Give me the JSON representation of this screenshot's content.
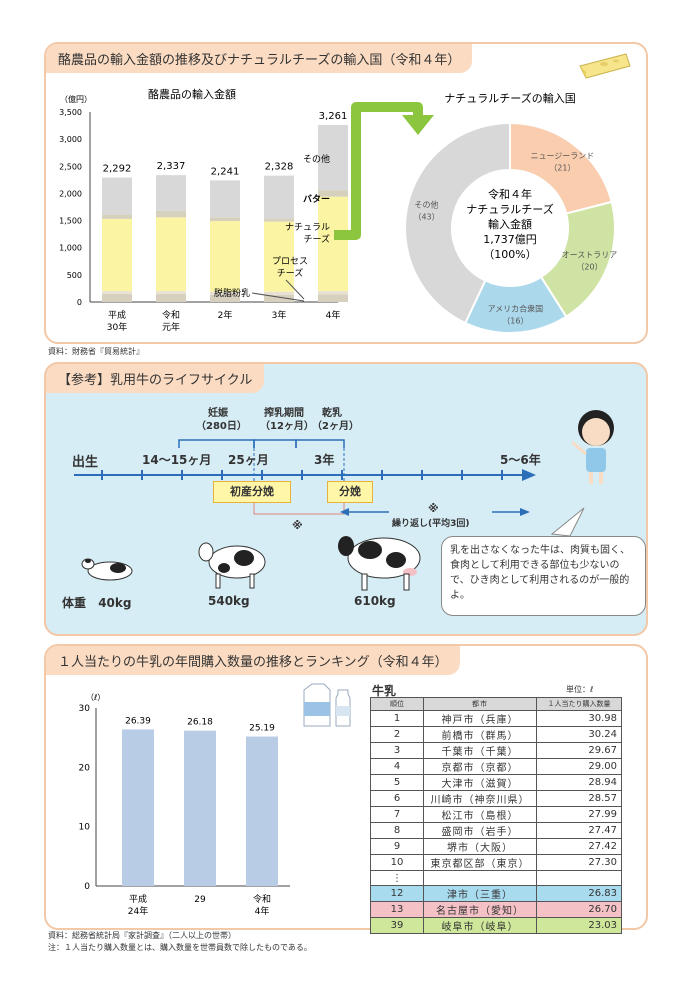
{
  "panel1": {
    "title": "酪農品の輸入金額の推移及びナチュラルチーズの輸入国（令和４年）",
    "source": "資料：財務省『貿易統計』"
  },
  "chart_data": [
    {
      "type": "bar",
      "title": "酪農品の輸入金額",
      "ylabel": "（億円）",
      "ylim": [
        0,
        3500
      ],
      "yticks": [
        "0",
        "500",
        "1,000",
        "1,500",
        "2,000",
        "2,500",
        "3,000",
        "3,500"
      ],
      "categories": [
        "平成30年",
        "令和元年",
        "2年",
        "3年",
        "4年"
      ],
      "totals": [
        "2,292",
        "2,337",
        "2,241",
        "2,328",
        "3,261"
      ],
      "series": [
        {
          "name": "脱脂粉乳",
          "values": [
            150,
            150,
            130,
            130,
            140
          ]
        },
        {
          "name": "プロセスチーズ",
          "values": [
            50,
            50,
            60,
            60,
            60
          ]
        },
        {
          "name": "ナチュラルチーズ",
          "values": [
            1330,
            1360,
            1300,
            1290,
            1740
          ]
        },
        {
          "name": "バター",
          "values": [
            80,
            120,
            70,
            60,
            121
          ]
        },
        {
          "name": "その他",
          "values": [
            682,
            657,
            681,
            788,
            1200
          ]
        }
      ],
      "colors": [
        "#d8d0bf",
        "#e7e1d3",
        "#fbf5a3",
        "#d6d1bd",
        "#d8d8d8"
      ]
    },
    {
      "type": "pie",
      "title": "ナチュラルチーズの輸入国",
      "center_text": [
        "令和４年",
        "ナチュラルチーズ",
        "輸入金額",
        "1,737億円",
        "（100%）"
      ],
      "slices": [
        {
          "label": "ニュージーランド",
          "value": 21,
          "display": "（21）",
          "color": "#f9cdae"
        },
        {
          "label": "オーストラリア",
          "value": 20,
          "display": "（20）",
          "color": "#cfe3a4"
        },
        {
          "label": "アメリカ合衆国",
          "value": 16,
          "display": "（16）",
          "color": "#acd8ec"
        },
        {
          "label": "その他",
          "value": 43,
          "display": "（43）",
          "color": "#d8d8d8"
        }
      ]
    },
    {
      "type": "bar",
      "ylabel": "（ℓ）",
      "ylim": [
        0,
        30
      ],
      "yticks": [
        "0",
        "10",
        "20",
        "30"
      ],
      "categories": [
        "平成24年",
        "29",
        "令和4年"
      ],
      "values": [
        26.39,
        26.18,
        25.19
      ],
      "labels": [
        "26.39",
        "26.18",
        "25.19"
      ],
      "color": "#b9cce6"
    }
  ],
  "panel2": {
    "title": "【参考】乳用牛のライフサイクル",
    "birth": "出生",
    "m1": "14～15ヶ月",
    "m2": "25ヶ月",
    "y3": "3年",
    "y5": "5～6年",
    "pregnancy": "妊娠",
    "pregnancy_days": "（280日）",
    "milking": "搾乳期間",
    "milking_len": "（12ヶ月）",
    "dry": "乾乳",
    "dry_len": "（2ヶ月）",
    "first_calving": "初産分娩",
    "calving": "分娩",
    "mark": "※",
    "repeat": "繰り返し(平均3回)",
    "weight_label": "体重",
    "w1": "40kg",
    "w2": "540kg",
    "w3": "610kg",
    "note": "乳を出さなくなった牛は、肉質も固く、食肉として利用できる部位も少ないので、ひき肉として利用されるのが一般的よ。"
  },
  "panel3": {
    "title": "１人当たりの牛乳の年間購入数量の推移とランキング（令和４年）",
    "table_title": "牛乳",
    "unit": "単位：ℓ",
    "headers": [
      "順位",
      "都市",
      "１人当たり購入数量"
    ],
    "rows": [
      {
        "rank": "1",
        "city": "神戸市（兵庫）",
        "value": "30.98"
      },
      {
        "rank": "2",
        "city": "前橋市（群馬）",
        "value": "30.24"
      },
      {
        "rank": "3",
        "city": "千葉市（千葉）",
        "value": "29.67"
      },
      {
        "rank": "4",
        "city": "京都市（京都）",
        "value": "29.00"
      },
      {
        "rank": "5",
        "city": "大津市（滋賀）",
        "value": "28.94"
      },
      {
        "rank": "6",
        "city": "川崎市（神奈川県）",
        "value": "28.57"
      },
      {
        "rank": "7",
        "city": "松江市（島根）",
        "value": "27.99"
      },
      {
        "rank": "8",
        "city": "盛岡市（岩手）",
        "value": "27.47"
      },
      {
        "rank": "9",
        "city": "堺市（大阪）",
        "value": "27.42"
      },
      {
        "rank": "10",
        "city": "東京都区部（東京）",
        "value": "27.30"
      },
      {
        "rank": "⋮",
        "city": "",
        "value": ""
      },
      {
        "rank": "12",
        "city": "津市（三重）",
        "value": "26.83"
      },
      {
        "rank": "13",
        "city": "名古屋市（愛知）",
        "value": "26.70"
      },
      {
        "rank": "39",
        "city": "岐阜市（岐阜）",
        "value": "23.03"
      }
    ],
    "source1": "資料：総務省統計局『家計調査』（二人以上の世帯）",
    "source2": "注：１人当たり購入数量とは、購入数量を世帯員数で除したものである。"
  }
}
